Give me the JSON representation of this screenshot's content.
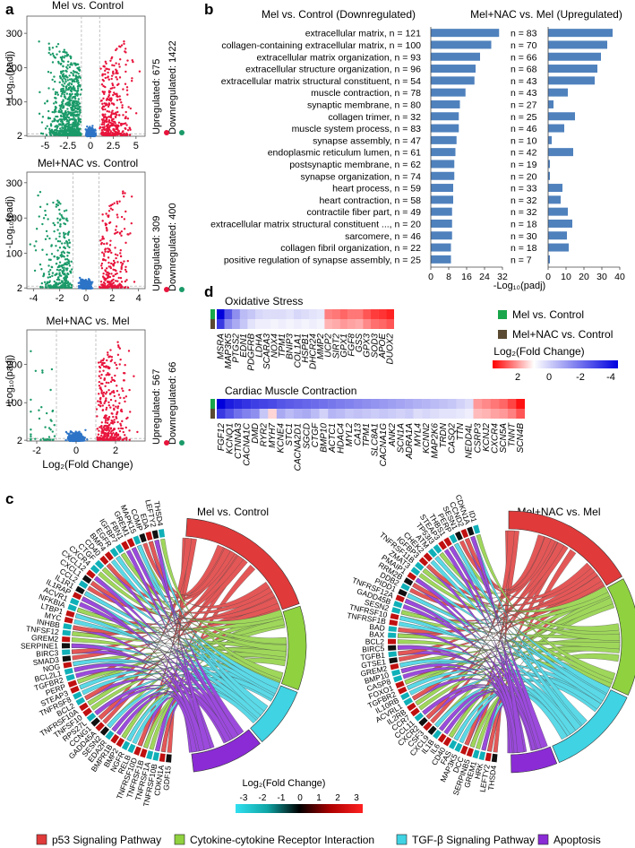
{
  "panel_letters": {
    "a": "a",
    "b": "b",
    "c": "c",
    "d": "d"
  },
  "colors": {
    "up": "#e8143c",
    "down": "#1a9a68",
    "neutral": "#2d74c7",
    "bar": "#4f81bd",
    "legend_mel": "#19a64a",
    "legend_melnac": "#5a4a32",
    "p53": "#e03a3a",
    "cytokine": "#8fd13f",
    "tgfb": "#3fd3e3",
    "apoptosis": "#8a2bd6"
  },
  "volcano": {
    "xlabel": "Log₂(Fold Change)",
    "ylabel": "-Log₁₀(padj)",
    "plots": [
      {
        "title": "Mel vs. Control",
        "up_label": "Upregulated: 675",
        "down_label": "Downregulated: 1422",
        "xticks": [
          "-5",
          "-2.5",
          "0",
          "2.5",
          "5"
        ],
        "xtick_values": [
          -5,
          -2.5,
          0,
          2.5,
          5
        ],
        "xlim": [
          -7,
          6
        ],
        "yticks": [
          "2",
          "100",
          "200",
          "300"
        ],
        "ytick_values": [
          2,
          100,
          200,
          300
        ],
        "ylim": [
          0,
          350
        ],
        "spread": 6
      },
      {
        "title": "Mel+NAC vs. Control",
        "up_label": "Upregulated: 309",
        "down_label": "Downregulated: 400",
        "xticks": [
          "-4",
          "-2",
          "0",
          "2",
          "4"
        ],
        "xtick_values": [
          -4,
          -2,
          0,
          2,
          4
        ],
        "xlim": [
          -4.5,
          4.5
        ],
        "yticks": [
          "2",
          "100",
          "200",
          "300"
        ],
        "ytick_values": [
          2,
          100,
          200,
          300
        ],
        "ylim": [
          0,
          330
        ],
        "spread": 4
      },
      {
        "title": "Mel+NAC vs. Mel",
        "up_label": "Upregulated: 567",
        "down_label": "Downregulated: 66",
        "xticks": [
          "-2",
          "0",
          "2"
        ],
        "xtick_values": [
          -2,
          0,
          2
        ],
        "xlim": [
          -2.5,
          3.5
        ],
        "yticks": [
          "2",
          "100",
          "200"
        ],
        "ytick_values": [
          2,
          100,
          200
        ],
        "ylim": [
          0,
          290
        ],
        "spread": 2.5
      }
    ]
  },
  "chart_data": {
    "type": "bar",
    "title_left": "Mel vs. Control (Downregulated)",
    "title_right": "Mel+NAC vs. Mel (Upregulated)",
    "xlabel": "-Log₁₀(padj)",
    "categories": [
      "extracellular matrix, n = 121",
      "collagen-containing extracellular matrix, n = 100",
      "extracellular matrix organization, n = 93",
      "extracellular structure organization, n = 96",
      "extracellular matrix structural constituent, n = 54",
      "muscle contraction, n = 78",
      "synaptic membrane, n = 80",
      "collagen trimer, n = 32",
      "muscle system process, n = 83",
      "synapse assembly, n = 47",
      "endoplasmic reticulum lumen, n = 61",
      "postsynaptic membrane, n = 62",
      "synapse organization, n = 74",
      "heart process, n = 59",
      "heart contraction, n = 58",
      "contractile fiber part, n = 49",
      "extracellular matrix structural constituent ..., n = 20",
      "sarcomere, n = 46",
      "collagen fibril organization, n = 22",
      "positive regulation of synapse assembly, n = 25"
    ],
    "right_labels": [
      "n = 83",
      "n = 70",
      "n = 66",
      "n = 68",
      "n = 43",
      "n = 43",
      "n = 27",
      "n = 25",
      "n = 46",
      "n = 10",
      "n = 42",
      "n = 19",
      "n = 20",
      "n = 33",
      "n = 32",
      "n = 32",
      "n = 18",
      "n = 30",
      "n = 18",
      "n = 7"
    ],
    "series": [
      {
        "name": "Mel vs. Control (Downregulated)",
        "values": [
          30.5,
          27,
          22,
          20,
          19.5,
          15.5,
          13,
          12.5,
          12.5,
          11.5,
          11,
          10.5,
          10.5,
          10,
          10,
          9.5,
          9.5,
          9.5,
          9,
          9
        ]
      },
      {
        "name": "Mel+NAC vs. Mel (Upregulated)",
        "values": [
          36,
          33,
          29.5,
          27.5,
          26,
          11,
          3,
          15,
          9,
          2,
          14,
          1,
          1,
          8,
          7,
          11,
          13.5,
          10.5,
          11.5,
          1
        ]
      }
    ],
    "xlim_left": [
      0,
      32
    ],
    "xticks_left": [
      0,
      8,
      16,
      24,
      32
    ],
    "xlim_right": [
      0,
      40
    ],
    "xticks_right": [
      0,
      10,
      20,
      30,
      40
    ]
  },
  "heatmap": {
    "legend_items": [
      "Mel vs. Control",
      "Mel+NAC vs. Control"
    ],
    "legend_title": "Log₂(Fold Change)",
    "scale_ticks": [
      "2",
      "0",
      "-2",
      "-4"
    ],
    "groups": [
      {
        "title": "Oxidative Stress",
        "genes": [
          "MSRA",
          "MAP3K5",
          "PTGS2",
          "EDN1",
          "PDGFRB",
          "LDHA",
          "SCARA3",
          "NOX4",
          "TPM1",
          "BNIP3",
          "COL1A1",
          "HSPB1",
          "DHCR24",
          "MMP2",
          "UCP2",
          "SIRT2",
          "GPX1",
          "FGF8",
          "GSS",
          "GPX3",
          "SOD3",
          "APOE",
          "DUOX2"
        ],
        "row1": [
          -4.5,
          -3,
          -2,
          -1.2,
          -1,
          -0.7,
          -0.6,
          -0.6,
          -0.6,
          -0.5,
          -0.7,
          -0.6,
          -0.5,
          -0.4,
          1.5,
          1.6,
          1.8,
          1.6,
          1.6,
          2,
          2.3,
          2.4,
          2.6
        ],
        "row2": [
          -3.5,
          -2,
          -1.5,
          -1,
          -0.5,
          -0.3,
          -0.3,
          -0.2,
          -0.3,
          -0.2,
          -0.3,
          -0.2,
          -0.3,
          -0.2,
          0.9,
          1,
          1.2,
          1.1,
          1,
          1.4,
          1.7,
          1.8,
          2
        ]
      },
      {
        "title": "Cardiac Muscle Contraction",
        "genes": [
          "FGF12",
          "KCNQ1",
          "CTNNA3",
          "CACNA1C",
          "DMD",
          "RYR2",
          "MYH7",
          "KCNE4",
          "STC1",
          "CACNA2D1",
          "SGCD",
          "CTGF",
          "BMP10",
          "ACTC1",
          "HDAC4",
          "MYL2",
          "CA13",
          "TPM1",
          "SLC8A1",
          "CACNA1G",
          "ANK2",
          "SCN1A",
          "ADRA1A",
          "MYL4",
          "KCNN2",
          "MAP2K6",
          "TRDN",
          "CASQ2",
          "TTN",
          "NEDD4L",
          "CSRP3",
          "KCNJ2",
          "CXCR4",
          "SCN5A",
          "TNNT",
          "SCN4B"
        ],
        "row1": [
          -4.5,
          -4,
          -3.8,
          -3.6,
          -3.4,
          -3.3,
          -3.2,
          -3,
          -2.9,
          -2.8,
          -2.7,
          -2.6,
          -2.5,
          -2.4,
          -2.3,
          -2.2,
          -2.1,
          -2,
          -1.9,
          -1.8,
          -1.7,
          -1.6,
          -1.5,
          -1.4,
          -1.3,
          -1.2,
          -1.1,
          -1,
          -0.8,
          -0.6,
          1.2,
          1.4,
          1.6,
          1.8,
          2.2,
          2.8
        ],
        "row2": [
          -3.5,
          -3,
          -2.5,
          -2.2,
          -2,
          -1,
          0.5,
          -1.5,
          -1.2,
          -1.4,
          -1.5,
          -1.2,
          -0.8,
          -1.3,
          -1.2,
          -1,
          -1.1,
          -1,
          -0.9,
          -1,
          -0.9,
          -0.8,
          -0.9,
          -0.6,
          -0.7,
          -0.6,
          -0.5,
          -0.5,
          -0.4,
          -0.3,
          0.8,
          0.9,
          1.1,
          1.2,
          1.5,
          2
        ]
      }
    ]
  },
  "chord": {
    "left_title": "Mel vs. Control",
    "right_title": "Mel+NAC vs. Mel",
    "left_genes": [
      "GDF15",
      "CDKN1A",
      "TNFRSF10B",
      "TNFRSF1A",
      "TNFRSF1B",
      "TNFRSF10D",
      "RELB",
      "NGFR",
      "BMP2",
      "BMPR1B",
      "EDA2R",
      "SESN2",
      "GADD45A",
      "CCNG1",
      "RPS27L",
      "TNFSF10",
      "TNFRSF10A",
      "BCL2",
      "TNFRSF8",
      "STEAP3",
      "PERP",
      "TGFBR2",
      "BCL2L1",
      "NOG",
      "SMAD3",
      "BIRC3",
      "SERPINE1",
      "GREM2",
      "TNFSF12",
      "INHBB",
      "MYC",
      "LTBP1",
      "NFKBIA",
      "ACVR1",
      "IL1RAP",
      "IL1R1",
      "CCL2",
      "CXCL1",
      "CXCL12",
      "CXCR4",
      "CTGF",
      "CD40",
      "BMP4",
      "EGFR",
      "IGFBP7",
      "FBN1",
      "GREM1",
      "MAPK15",
      "COMP",
      "EDA",
      "LEFTY2",
      "THSD4"
    ],
    "right_genes": [
      "THSD4",
      "LEFTY2",
      "HRK",
      "GREM1",
      "SERPINB5",
      "DCC",
      "MAP3K5",
      "FAS",
      "CD40",
      "IL6",
      "IL1B",
      "CXCL9",
      "CSF3",
      "CXCR2",
      "CCL11",
      "CCR7",
      "IL2RB",
      "ACVRL1",
      "IL10RB",
      "TGFBR2",
      "FOXO1",
      "CASP8",
      "BMP10",
      "GREM2",
      "GTSE1",
      "TGFB1",
      "BIRC5",
      "BCL2",
      "BAX",
      "BAD",
      "TNFRSF1B",
      "TNFRSF10",
      "SESN2",
      "GADD45B",
      "TNFRSF12A",
      "PIDD1",
      "DDB2",
      "RRM2B",
      "PMAIP1",
      "ZMAT3",
      "TNFRSF11B",
      "IGFBP3",
      "CHEK2",
      "ATM",
      "TP53I3",
      "STEAP3",
      "THBS1",
      "PERP",
      "SESN1",
      "CCND2",
      "CDKN1A",
      "ID1"
    ],
    "scale_title": "Log₂(Fold Change)",
    "scale_ticks": [
      "-3",
      "-2",
      "-1",
      "0",
      "1",
      "2",
      "3"
    ],
    "legend": [
      "p53 Signaling Pathway",
      "Cytokine-cytokine Receptor Interaction",
      "TGF-β Signaling Pathway",
      "Apoptosis"
    ]
  }
}
